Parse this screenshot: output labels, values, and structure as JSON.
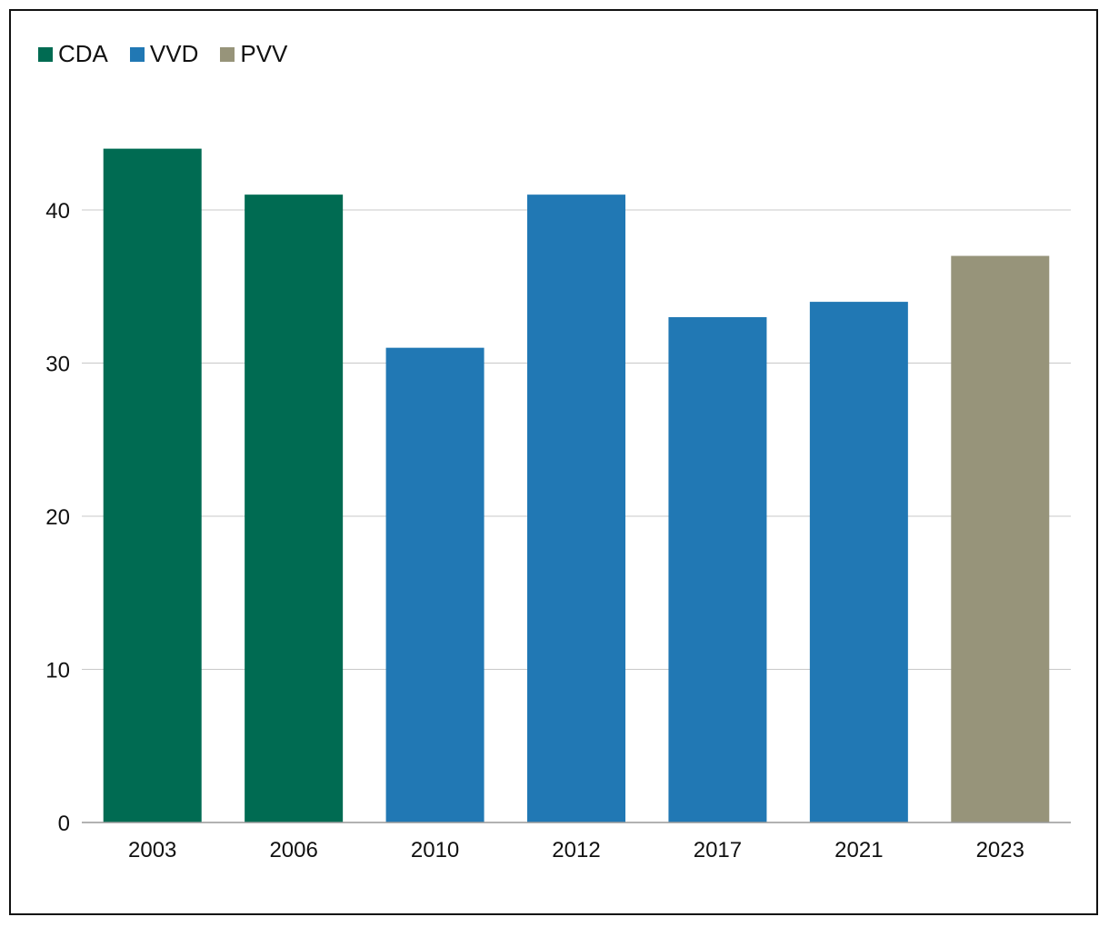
{
  "chart_data": {
    "type": "bar",
    "title": "",
    "xlabel": "",
    "ylabel": "",
    "ylim": [
      0,
      48
    ],
    "yticks": [
      0,
      10,
      20,
      30,
      40
    ],
    "grid": true,
    "legend_position": "top-left",
    "legend": [
      {
        "name": "CDA",
        "color": "#006B52"
      },
      {
        "name": "VVD",
        "color": "#2178B4"
      },
      {
        "name": "PVV",
        "color": "#97947A"
      }
    ],
    "categories": [
      "2003",
      "2006",
      "2010",
      "2012",
      "2017",
      "2021",
      "2023"
    ],
    "values": [
      44,
      41,
      31,
      41,
      33,
      34,
      37
    ],
    "bar_party": [
      "CDA",
      "CDA",
      "VVD",
      "VVD",
      "VVD",
      "VVD",
      "PVV"
    ]
  }
}
